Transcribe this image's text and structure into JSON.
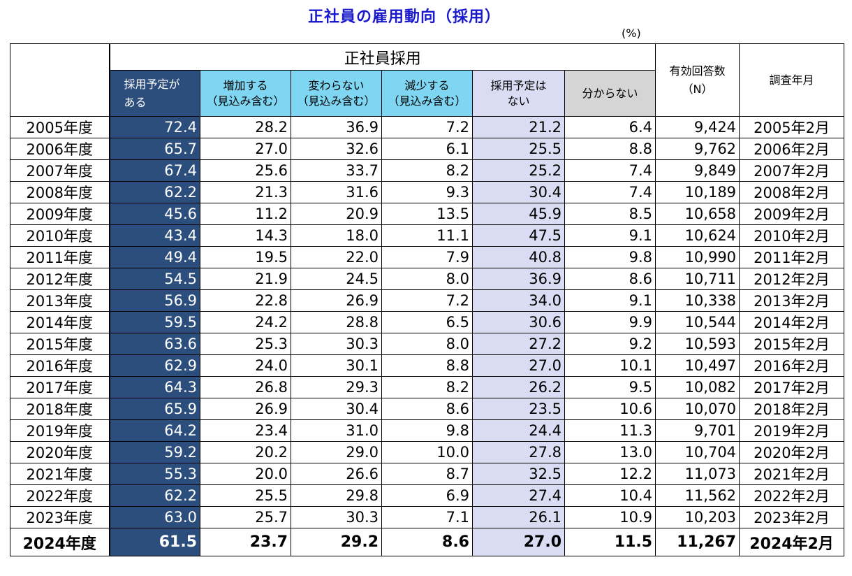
{
  "title": "正社員の雇用動向（採用）",
  "unit": "(%)",
  "header": {
    "group": "正社員採用",
    "col1": [
      "採用予定が",
      "ある"
    ],
    "col2": [
      "増加する",
      "（見込み含む）"
    ],
    "col3": [
      "変わらない",
      "（見込み含む）"
    ],
    "col4": [
      "減少する",
      "（見込み含む）"
    ],
    "col5": [
      "採用予定は",
      "ない"
    ],
    "col6": "分からない",
    "col7": [
      "有効回答数",
      "（N）"
    ],
    "col8": "調査年月"
  },
  "rows": [
    {
      "year": "2005年度",
      "c1": "72.4",
      "c2": "28.2",
      "c3": "36.9",
      "c4": "7.2",
      "c5": "21.2",
      "c6": "6.4",
      "n": "9,424",
      "month": "2005年2月"
    },
    {
      "year": "2006年度",
      "c1": "65.7",
      "c2": "27.0",
      "c3": "32.6",
      "c4": "6.1",
      "c5": "25.5",
      "c6": "8.8",
      "n": "9,762",
      "month": "2006年2月"
    },
    {
      "year": "2007年度",
      "c1": "67.4",
      "c2": "25.6",
      "c3": "33.7",
      "c4": "8.2",
      "c5": "25.2",
      "c6": "7.4",
      "n": "9,849",
      "month": "2007年2月"
    },
    {
      "year": "2008年度",
      "c1": "62.2",
      "c2": "21.3",
      "c3": "31.6",
      "c4": "9.3",
      "c5": "30.4",
      "c6": "7.4",
      "n": "10,189",
      "month": "2008年2月"
    },
    {
      "year": "2009年度",
      "c1": "45.6",
      "c2": "11.2",
      "c3": "20.9",
      "c4": "13.5",
      "c5": "45.9",
      "c6": "8.5",
      "n": "10,658",
      "month": "2009年2月"
    },
    {
      "year": "2010年度",
      "c1": "43.4",
      "c2": "14.3",
      "c3": "18.0",
      "c4": "11.1",
      "c5": "47.5",
      "c6": "9.1",
      "n": "10,624",
      "month": "2010年2月"
    },
    {
      "year": "2011年度",
      "c1": "49.4",
      "c2": "19.5",
      "c3": "22.0",
      "c4": "7.9",
      "c5": "40.8",
      "c6": "9.8",
      "n": "10,990",
      "month": "2011年2月"
    },
    {
      "year": "2012年度",
      "c1": "54.5",
      "c2": "21.9",
      "c3": "24.5",
      "c4": "8.0",
      "c5": "36.9",
      "c6": "8.6",
      "n": "10,711",
      "month": "2012年2月"
    },
    {
      "year": "2013年度",
      "c1": "56.9",
      "c2": "22.8",
      "c3": "26.9",
      "c4": "7.2",
      "c5": "34.0",
      "c6": "9.1",
      "n": "10,338",
      "month": "2013年2月"
    },
    {
      "year": "2014年度",
      "c1": "59.5",
      "c2": "24.2",
      "c3": "28.8",
      "c4": "6.5",
      "c5": "30.6",
      "c6": "9.9",
      "n": "10,544",
      "month": "2014年2月"
    },
    {
      "year": "2015年度",
      "c1": "63.6",
      "c2": "25.3",
      "c3": "30.3",
      "c4": "8.0",
      "c5": "27.2",
      "c6": "9.2",
      "n": "10,593",
      "month": "2015年2月"
    },
    {
      "year": "2016年度",
      "c1": "62.9",
      "c2": "24.0",
      "c3": "30.1",
      "c4": "8.8",
      "c5": "27.0",
      "c6": "10.1",
      "n": "10,497",
      "month": "2016年2月"
    },
    {
      "year": "2017年度",
      "c1": "64.3",
      "c2": "26.8",
      "c3": "29.3",
      "c4": "8.2",
      "c5": "26.2",
      "c6": "9.5",
      "n": "10,082",
      "month": "2017年2月"
    },
    {
      "year": "2018年度",
      "c1": "65.9",
      "c2": "26.9",
      "c3": "30.4",
      "c4": "8.6",
      "c5": "23.5",
      "c6": "10.6",
      "n": "10,070",
      "month": "2018年2月"
    },
    {
      "year": "2019年度",
      "c1": "64.2",
      "c2": "23.4",
      "c3": "31.0",
      "c4": "9.8",
      "c5": "24.4",
      "c6": "11.3",
      "n": "9,701",
      "month": "2019年2月"
    },
    {
      "year": "2020年度",
      "c1": "59.2",
      "c2": "20.2",
      "c3": "29.0",
      "c4": "10.0",
      "c5": "27.8",
      "c6": "13.0",
      "n": "10,704",
      "month": "2020年2月"
    },
    {
      "year": "2021年度",
      "c1": "55.3",
      "c2": "20.0",
      "c3": "26.6",
      "c4": "8.7",
      "c5": "32.5",
      "c6": "12.2",
      "n": "11,073",
      "month": "2021年2月"
    },
    {
      "year": "2022年度",
      "c1": "62.2",
      "c2": "25.5",
      "c3": "29.8",
      "c4": "6.9",
      "c5": "27.4",
      "c6": "10.4",
      "n": "11,562",
      "month": "2022年2月"
    },
    {
      "year": "2023年度",
      "c1": "63.0",
      "c2": "25.7",
      "c3": "30.3",
      "c4": "7.1",
      "c5": "26.1",
      "c6": "10.9",
      "n": "10,203",
      "month": "2023年2月"
    },
    {
      "year": "2024年度",
      "c1": "61.5",
      "c2": "23.7",
      "c3": "29.2",
      "c4": "8.6",
      "c5": "27.0",
      "c6": "11.5",
      "n": "11,267",
      "month": "2024年2月"
    }
  ],
  "colors": {
    "title": "#1a1acc",
    "dark": "#2c4e7c",
    "cyan": "#7fd6f2",
    "lavender": "#d9dcf2",
    "gray": "#d5d5d5"
  }
}
